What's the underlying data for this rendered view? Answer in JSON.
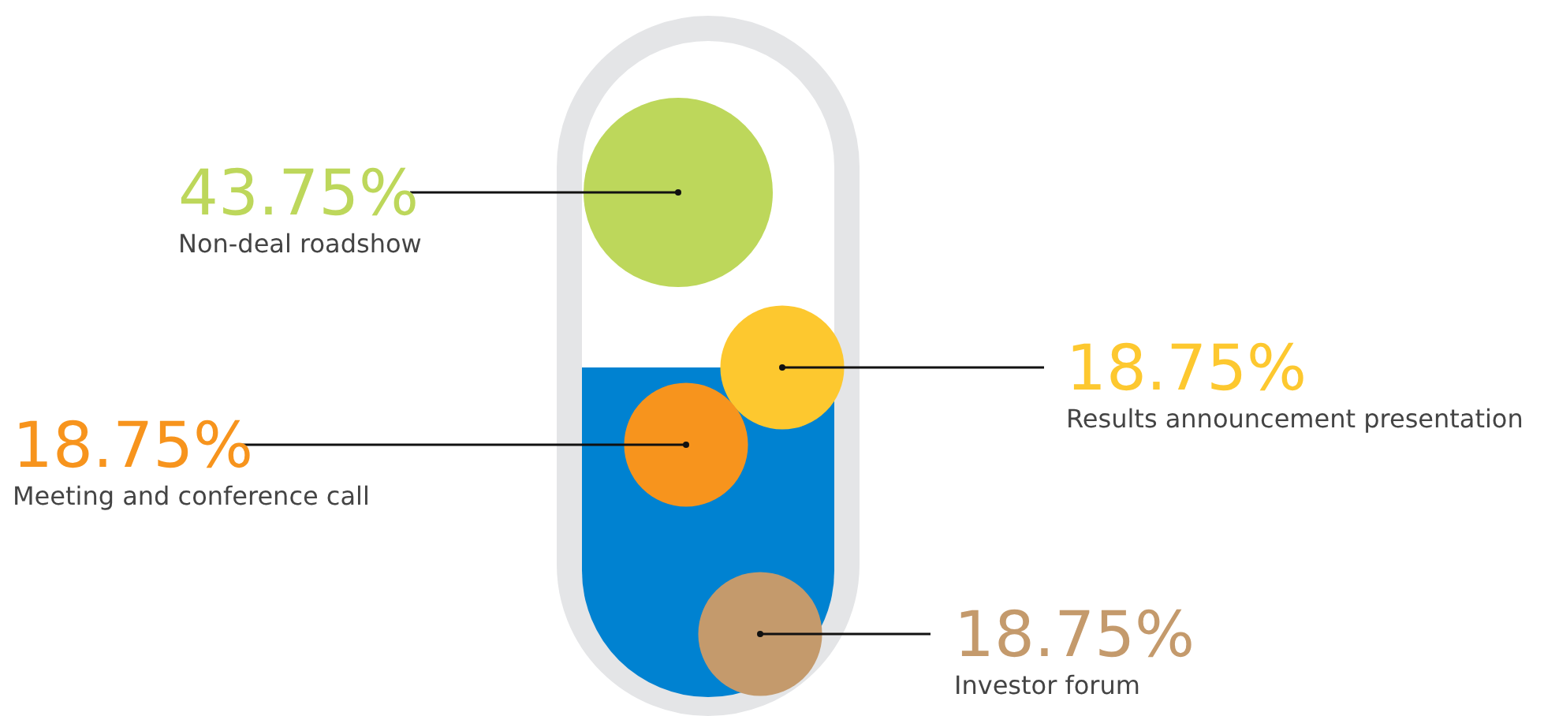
{
  "chart_data": {
    "type": "other",
    "categories": [
      "Non-deal roadshow",
      "Results announcement presentation",
      "Meeting and conference call",
      "Investor forum"
    ],
    "values": [
      43.75,
      18.75,
      18.75,
      18.75
    ],
    "value_labels": [
      "43.75%",
      "18.75%",
      "18.75%",
      "18.75%"
    ],
    "colors": [
      "#bdd75b",
      "#fdc82f",
      "#f7941d",
      "#c49a6c"
    ]
  }
}
